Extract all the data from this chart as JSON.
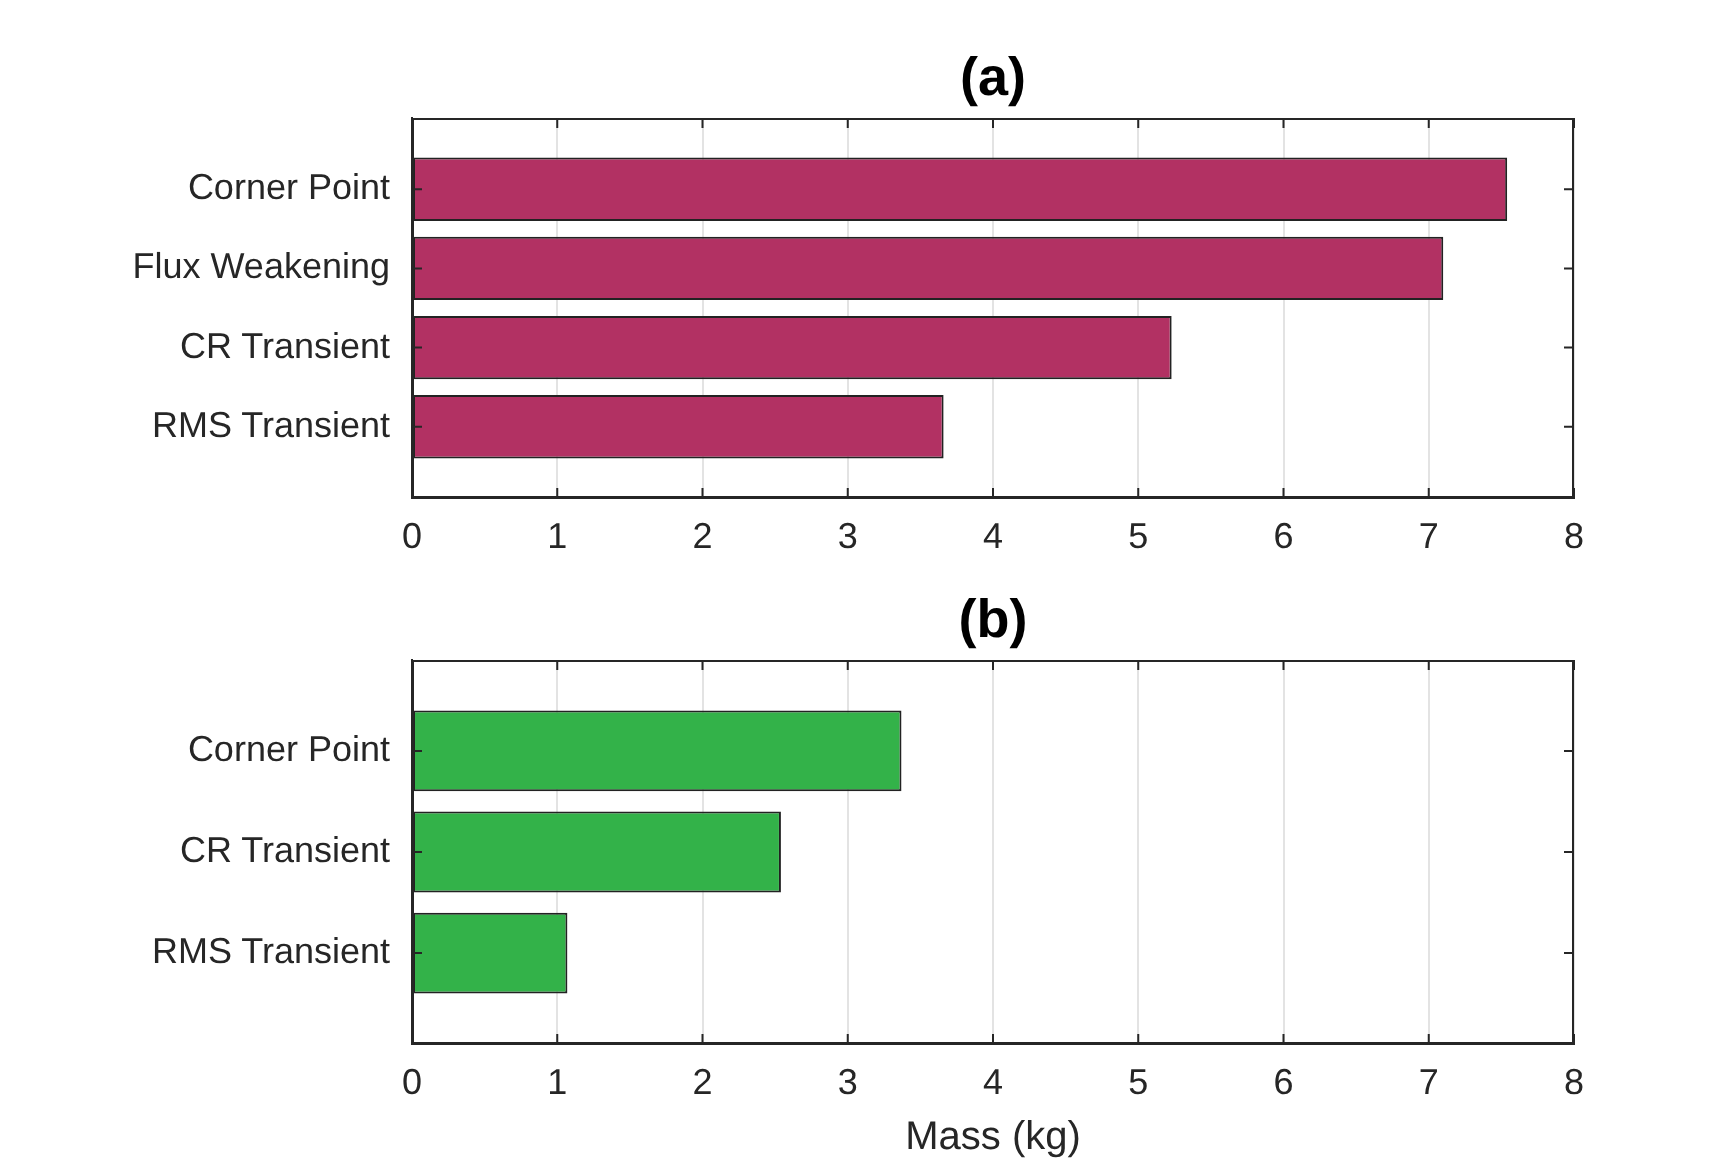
{
  "chart_data": [
    {
      "type": "bar",
      "orientation": "horizontal",
      "title": "(a)",
      "categories": [
        "Corner Point",
        "Flux Weakening",
        "CR Transient",
        "RMS Transient"
      ],
      "values": [
        7.54,
        7.1,
        5.23,
        3.66
      ],
      "color": "#b23163",
      "xlim": [
        0,
        8
      ],
      "xticks": [
        0,
        1,
        2,
        3,
        4,
        5,
        6,
        7,
        8
      ],
      "grid": "x"
    },
    {
      "type": "bar",
      "orientation": "horizontal",
      "title": "(b)",
      "xlabel": "Mass (kg)",
      "categories": [
        "Corner Point",
        "CR Transient",
        "RMS Transient"
      ],
      "values": [
        3.37,
        2.54,
        1.07
      ],
      "color": "#33b249",
      "xlim": [
        0,
        8
      ],
      "xticks": [
        0,
        1,
        2,
        3,
        4,
        5,
        6,
        7,
        8
      ],
      "grid": "x"
    }
  ]
}
